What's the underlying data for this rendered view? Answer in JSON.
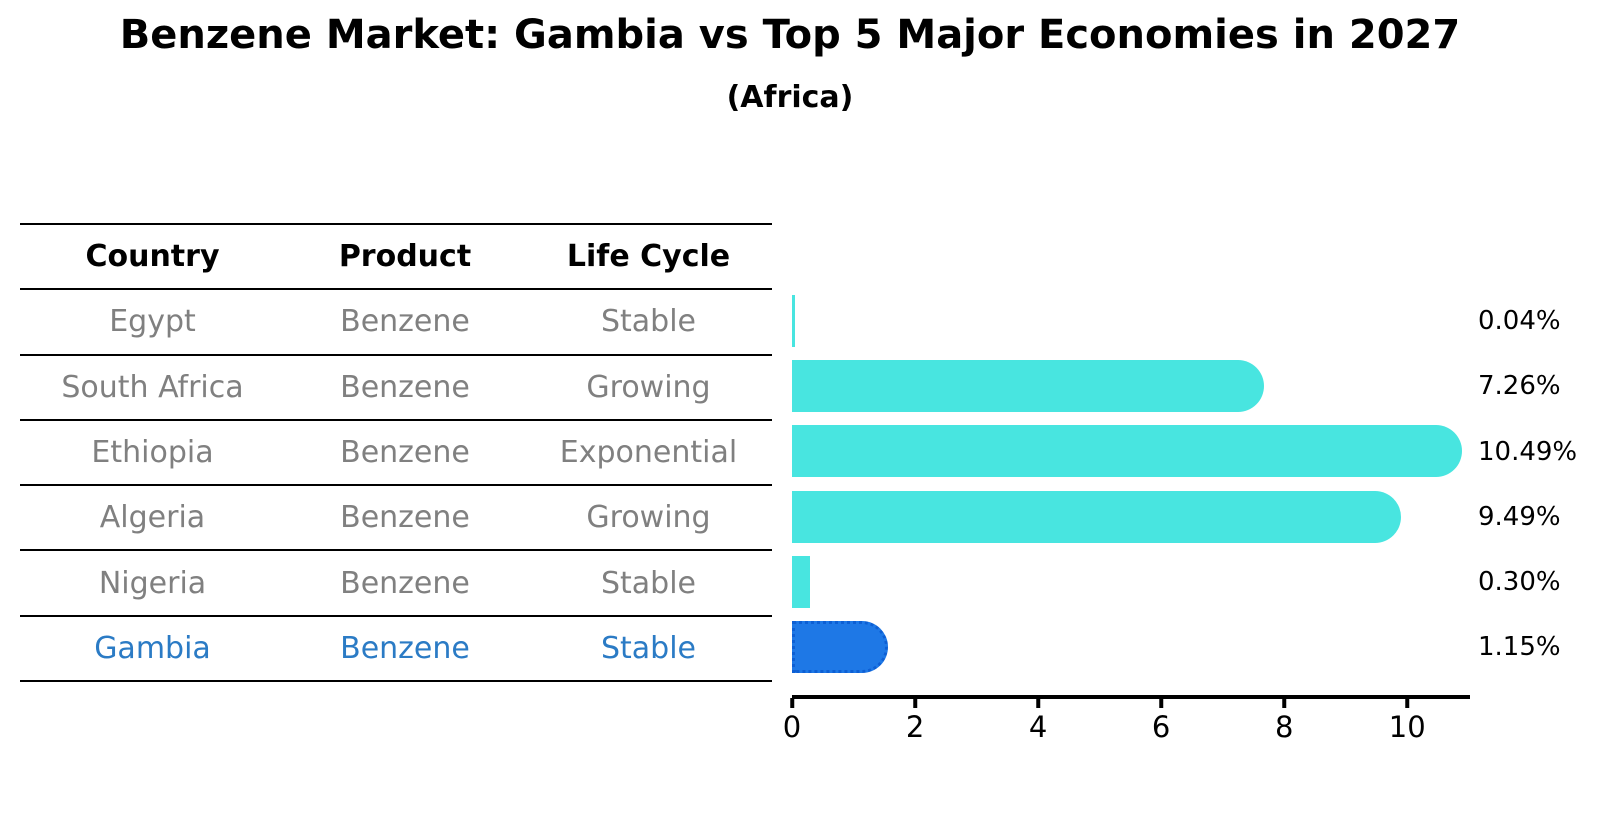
{
  "title": "Benzene Market: Gambia vs Top 5 Major Economies in 2027",
  "subtitle": "(Africa)",
  "table": {
    "headers": [
      "Country",
      "Product",
      "Life Cycle"
    ],
    "rows": [
      {
        "country": "Egypt",
        "product": "Benzene",
        "life_cycle": "Stable",
        "highlight": false
      },
      {
        "country": "South Africa",
        "product": "Benzene",
        "life_cycle": "Growing",
        "highlight": false
      },
      {
        "country": "Ethiopia",
        "product": "Benzene",
        "life_cycle": "Exponential",
        "highlight": false
      },
      {
        "country": "Algeria",
        "product": "Benzene",
        "life_cycle": "Growing",
        "highlight": false
      },
      {
        "country": "Nigeria",
        "product": "Benzene",
        "life_cycle": "Stable",
        "highlight": false
      },
      {
        "country": "Gambia",
        "product": "Benzene",
        "life_cycle": "Stable",
        "highlight": true
      }
    ]
  },
  "chart_data": {
    "type": "bar",
    "orientation": "horizontal",
    "title": "Benzene Market: Gambia vs Top 5 Major Economies in 2027",
    "subtitle": "(Africa)",
    "categories": [
      "Egypt",
      "South Africa",
      "Ethiopia",
      "Algeria",
      "Nigeria",
      "Gambia"
    ],
    "values": [
      0.04,
      7.26,
      10.49,
      9.49,
      0.3,
      1.15
    ],
    "value_labels": [
      "0.04%",
      "7.26%",
      "10.49%",
      "9.49%",
      "0.30%",
      "1.15%"
    ],
    "xlabel": "",
    "ylabel": "",
    "xticks": [
      0,
      2,
      4,
      6,
      8,
      10
    ],
    "xlim": [
      0,
      11.02
    ],
    "grid": false,
    "legend": false,
    "highlight_index": 5
  },
  "colors": {
    "bar": "#48E5E0",
    "highlight_bar": "#1E78E6",
    "highlight_border": "#0D5FD4",
    "highlight_text": "#2B7BC5",
    "table_text": "#808080",
    "header_text": "#000000",
    "axis": "#000000"
  }
}
